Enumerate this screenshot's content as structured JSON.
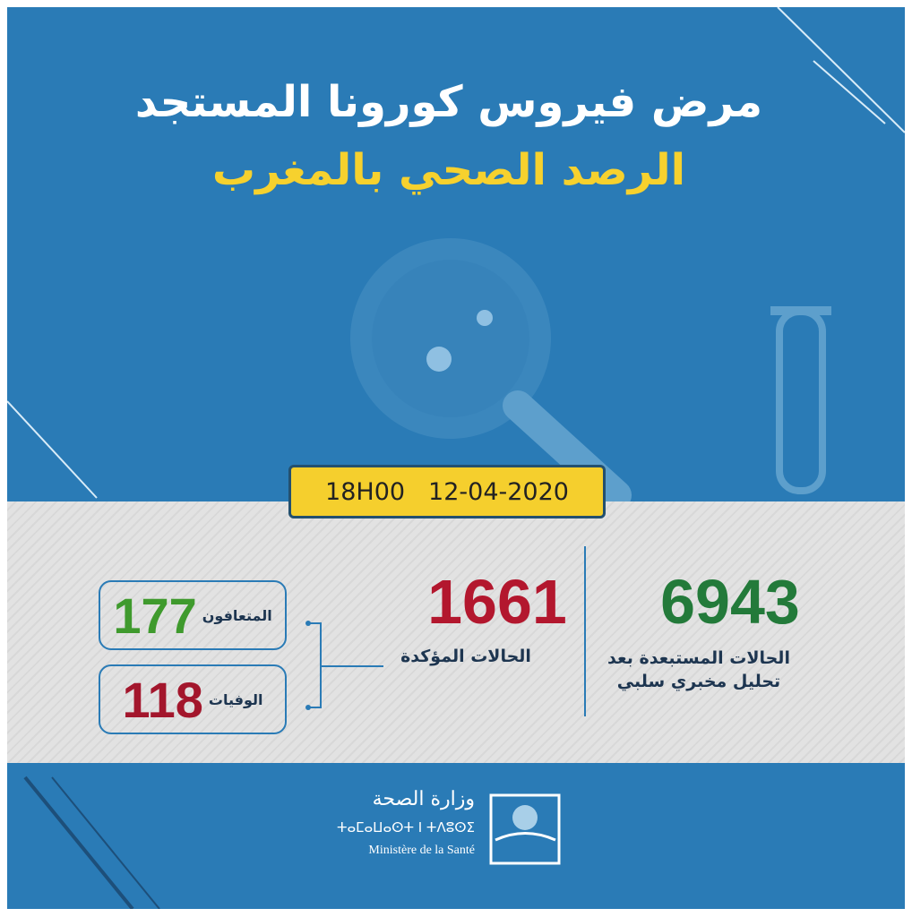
{
  "header": {
    "title": "مرض فيروس كورونا المستجد",
    "subtitle": "الرصد الصحي بالمغرب"
  },
  "report": {
    "time": "18H00",
    "date": "12-04-2020"
  },
  "stats": {
    "excluded": {
      "value": "6943",
      "label_lines": [
        "الحالات المستبعدة بعد",
        "تحليل مخبري سلبي"
      ]
    },
    "confirmed": {
      "value": "1661",
      "label": "الحالات المؤكدة"
    },
    "recovered": {
      "value": "177",
      "label": "المتعافون"
    },
    "deaths": {
      "value": "118",
      "label": "الوفيات"
    }
  },
  "footer": {
    "ministry_ar": "وزارة الصحة",
    "ministry_tfng": "ⵜⴰⵎⴰⵡⴰⵙⵜ ⵏ ⵜⴷⵓⵙⵉ",
    "ministry_fr": "Ministère de la Santé"
  }
}
